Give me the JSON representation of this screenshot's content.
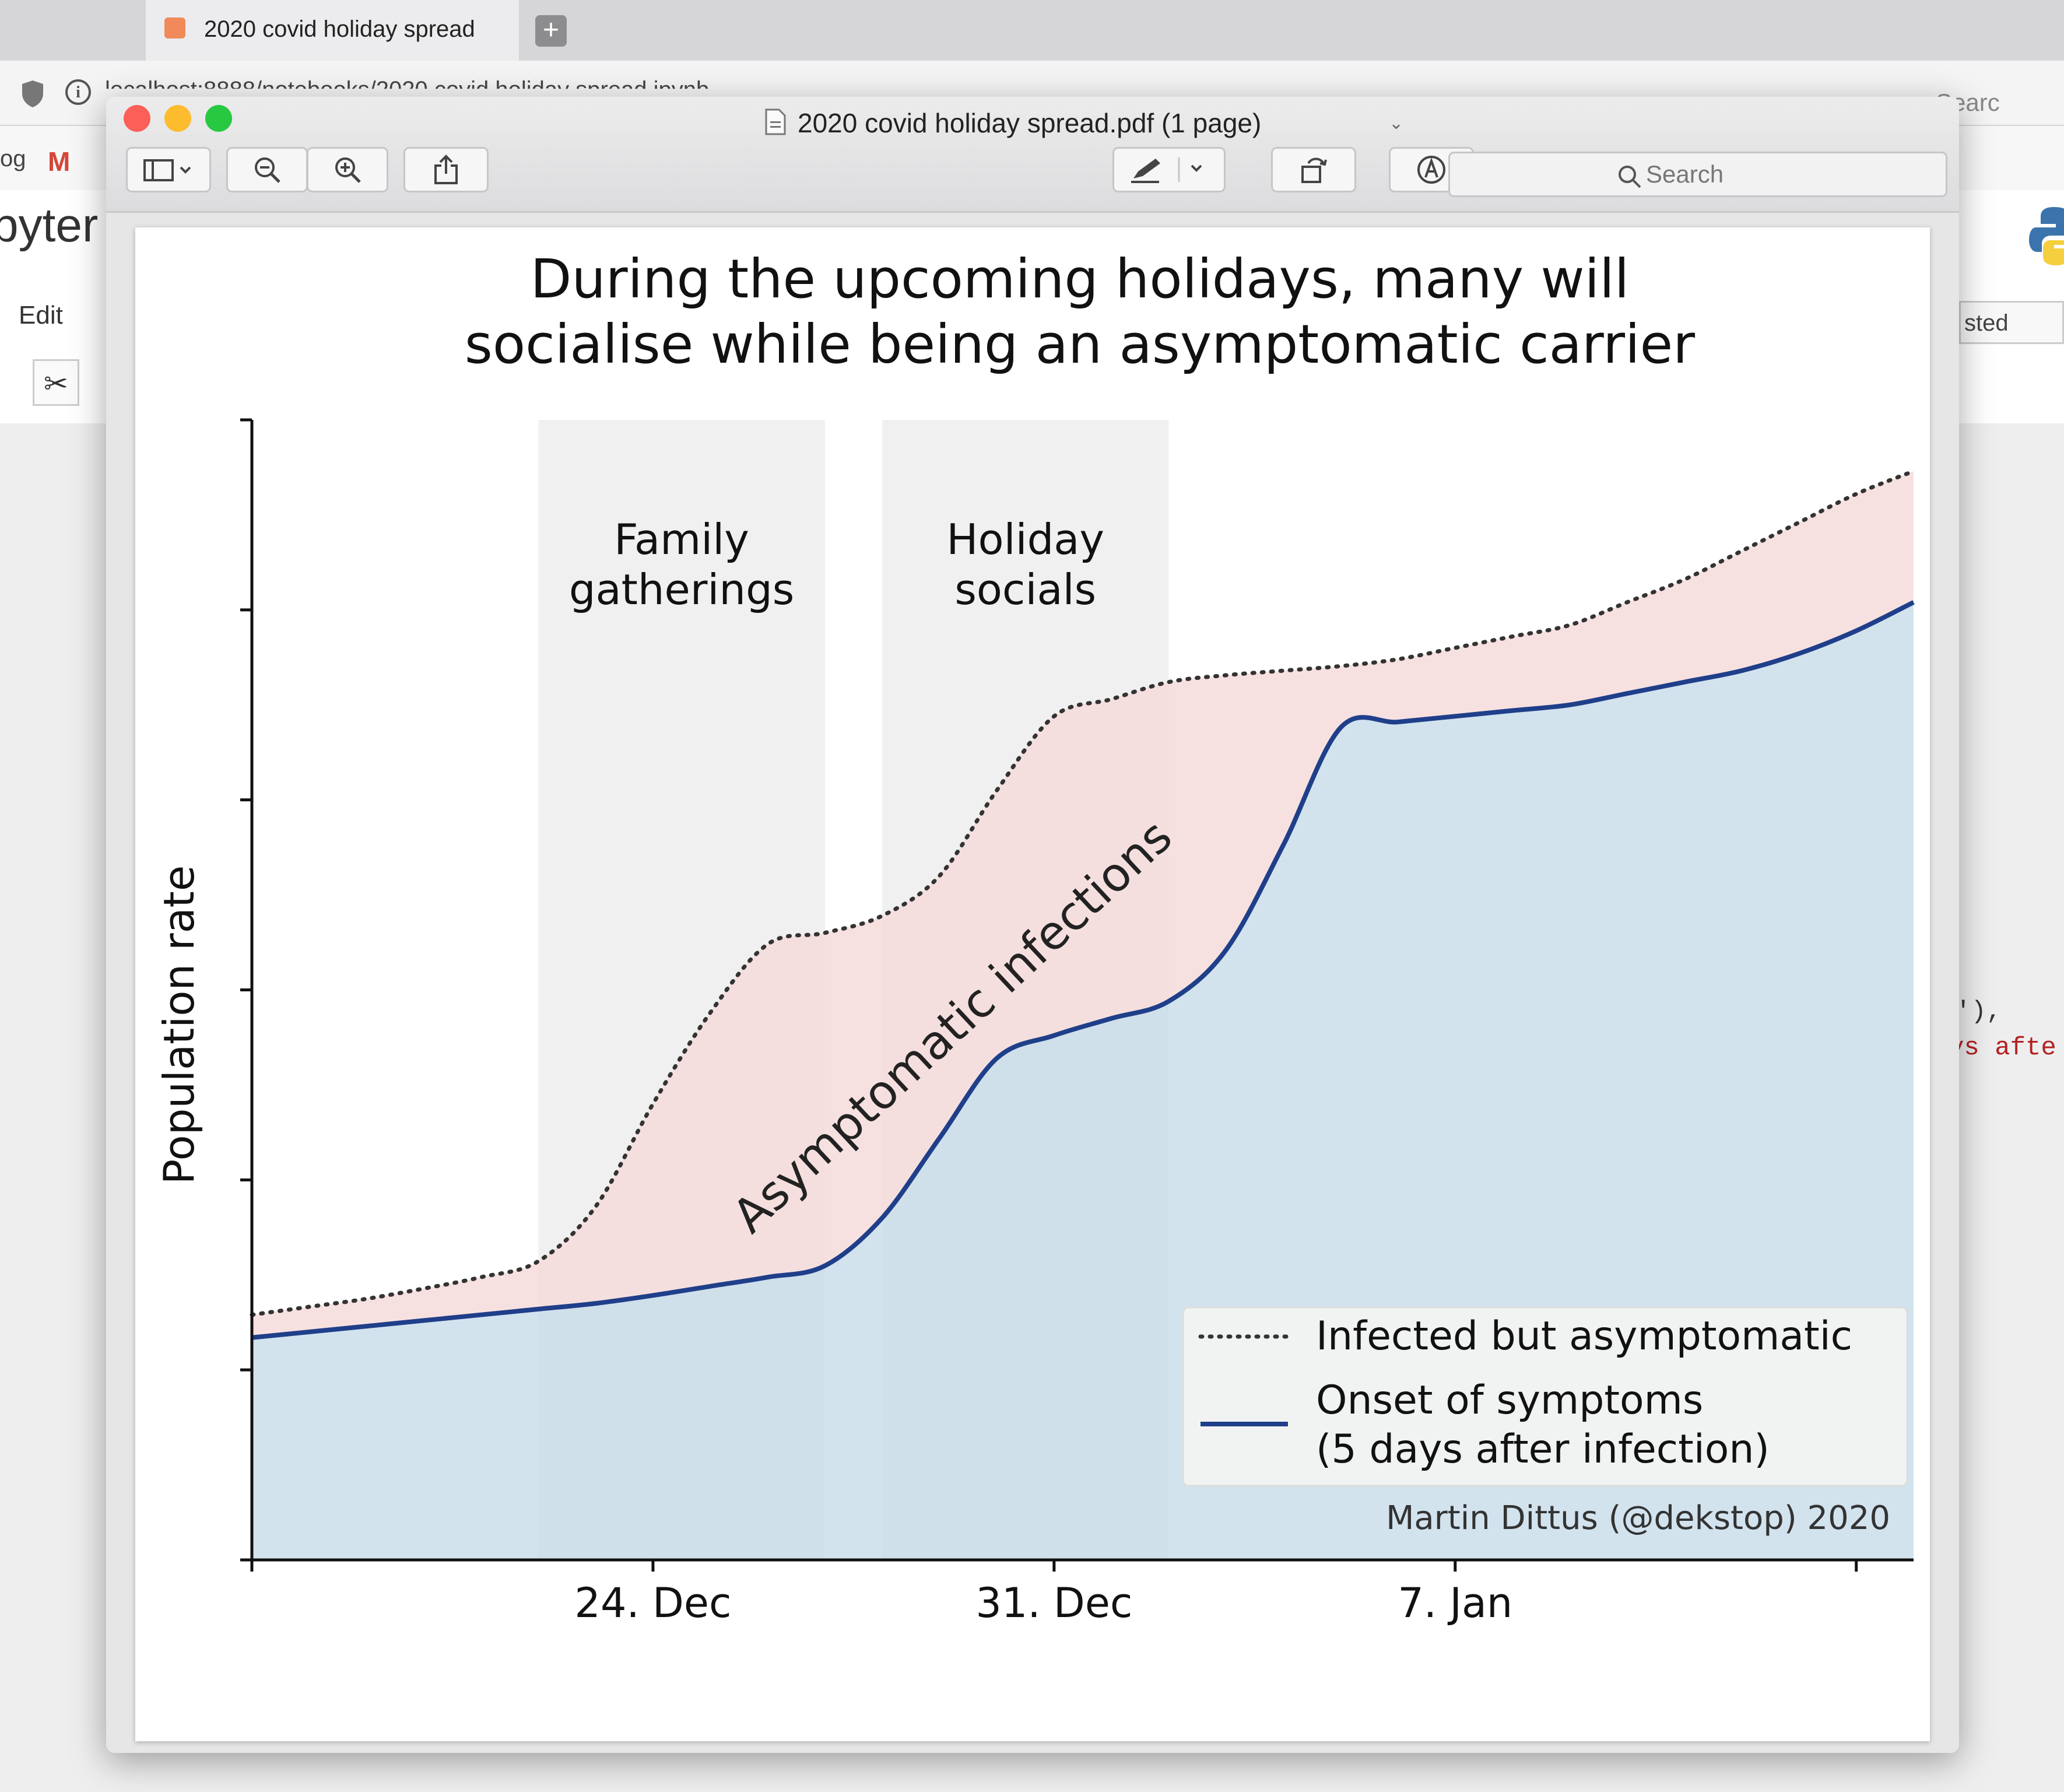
{
  "browser": {
    "tab_title": "2020 covid holiday spread",
    "new_tab": "+",
    "url": "localhost:8888/notebooks/2020 covid holiday spread.ipynb",
    "search_placeholder": "Searc",
    "bookmark_fragment": "og",
    "gmail_label": "M",
    "gmail_fragment": "m"
  },
  "jupyter": {
    "logo_fragment": "pyter",
    "menu_edit": "Edit",
    "cut_button": "✂",
    "trusted_fragment": "sted",
    "code_fragment_1": "'),",
    "code_fragment_2": "ys afte"
  },
  "preview": {
    "window_title": "2020 covid holiday spread.pdf (1 page)",
    "search_placeholder": "Search"
  },
  "colors": {
    "solid_line": "#1f3f8a",
    "dotted_line": "#333333",
    "asymptomatic_fill": "#f6dcdb",
    "symptoms_fill": "#c7dcea",
    "shade_band": "rgba(160,160,160,0.16)"
  },
  "chart_data": {
    "type": "area",
    "title": "During the upcoming holidays, many will\nsocialise while being an asymptomatic carrier",
    "ylabel": "Population rate",
    "xlabel": "",
    "x_ticks": [
      "24. Dec",
      "31. Dec",
      "7. Jan"
    ],
    "x_range_days": [
      -7,
      22
    ],
    "y_range": [
      0,
      1
    ],
    "y_ticks_unlabeled": 7,
    "shaded_periods": [
      {
        "label": "Family\ngatherings",
        "start_day": -2,
        "end_day": 3
      },
      {
        "label": "Holiday\nsocials",
        "start_day": 4,
        "end_day": 9
      }
    ],
    "area_label": "Asymptomatic infections",
    "x": [
      -7,
      -6,
      -5,
      -4,
      -3,
      -2,
      -1,
      0,
      1,
      2,
      3,
      4,
      5,
      6,
      7,
      8,
      9,
      10,
      11,
      12,
      13,
      14,
      15,
      16,
      17,
      18,
      19,
      20,
      21,
      22
    ],
    "series": [
      {
        "name": "Infected but asymptomatic",
        "style": "dotted",
        "values": [
          0.215,
          0.222,
          0.229,
          0.238,
          0.248,
          0.262,
          0.31,
          0.4,
          0.48,
          0.54,
          0.55,
          0.565,
          0.6,
          0.675,
          0.74,
          0.755,
          0.77,
          0.776,
          0.78,
          0.784,
          0.79,
          0.8,
          0.81,
          0.82,
          0.84,
          0.86,
          0.885,
          0.91,
          0.935,
          0.955
        ]
      },
      {
        "name": "Onset of symptoms\n(5 days after infection)",
        "style": "solid",
        "values": [
          0.195,
          0.2,
          0.205,
          0.21,
          0.215,
          0.22,
          0.225,
          0.232,
          0.24,
          0.248,
          0.258,
          0.3,
          0.37,
          0.44,
          0.46,
          0.475,
          0.49,
          0.535,
          0.627,
          0.73,
          0.735,
          0.74,
          0.745,
          0.75,
          0.76,
          0.77,
          0.78,
          0.795,
          0.815,
          0.84
        ]
      }
    ],
    "legend_position": "lower right",
    "credit": "Martin Dittus (@dekstop) 2020"
  }
}
